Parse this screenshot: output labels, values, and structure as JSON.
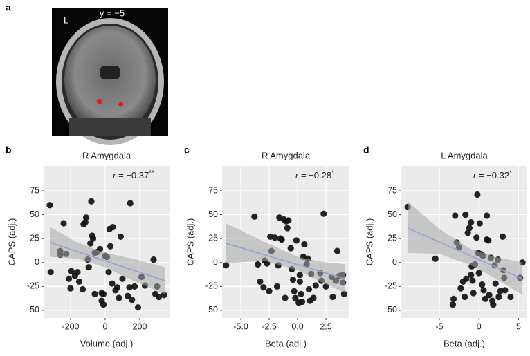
{
  "panel_a": {
    "label": "a",
    "hemisphere": "L",
    "slice": "y = −5"
  },
  "chart_data": [
    {
      "type": "scatter",
      "panel": "b",
      "title": "R Amygdala",
      "xlabel": "Volume (adj.)",
      "ylabel": "CAPS (adj.)",
      "annotation": {
        "symbol": "r",
        "text": " = −0.37",
        "sup": "**"
      },
      "color": "#111111",
      "fit_color": "#8fa3dd",
      "band_color": "#a8a8a8",
      "grid": true,
      "xlim": [
        -356,
        372
      ],
      "ylim": [
        -58,
        101
      ],
      "xticks": [
        -200,
        0,
        200
      ],
      "yticks": [
        -50,
        -25,
        0,
        25,
        50,
        75
      ],
      "x": [
        -320,
        -315,
        -260,
        -260,
        -240,
        -225,
        -210,
        -200,
        -195,
        -175,
        -160,
        -150,
        -130,
        -125,
        -115,
        -110,
        -100,
        -95,
        -85,
        -80,
        -75,
        -70,
        -60,
        -60,
        -45,
        -30,
        -20,
        -10,
        -20,
        -10,
        0,
        10,
        20,
        25,
        30,
        40,
        45,
        60,
        70,
        80,
        90,
        100,
        130,
        140,
        145,
        155,
        170,
        190,
        210,
        230,
        280,
        290,
        300,
        310,
        340
      ],
      "values": [
        60,
        -10,
        12,
        8,
        41,
        9,
        -17,
        -27,
        -9,
        -14,
        -10,
        -20,
        -28,
        40,
        42,
        47,
        3,
        -5,
        20,
        64,
        28,
        25,
        -33,
        10,
        11,
        14,
        -32,
        -33,
        -40,
        -44,
        7,
        6,
        -10,
        35,
        17,
        -22,
        37,
        -29,
        -26,
        -37,
        27,
        -17,
        -35,
        -26,
        62,
        -39,
        -25,
        -47,
        -15,
        -24,
        3,
        -33,
        -25,
        -36,
        -34
      ],
      "fit": {
        "x": [
          -320,
          345
        ],
        "values": [
          21,
          -19
        ]
      },
      "band": {
        "x": [
          -320,
          -160,
          0,
          160,
          345
        ],
        "lower": [
          6,
          4,
          -5,
          -19,
          -33
        ],
        "upper": [
          37,
          21,
          10,
          4,
          -5
        ]
      }
    },
    {
      "type": "scatter",
      "panel": "c",
      "title": "R Amygdala",
      "xlabel": "Beta (adj.)",
      "ylabel": "CAPS (adj.)",
      "annotation": {
        "symbol": "r",
        "text": " = −0.28",
        "sup": "*"
      },
      "color": "#111111",
      "fit_color": "#8fa3dd",
      "band_color": "#a8a8a8",
      "grid": true,
      "xlim": [
        -6.65,
        4.57
      ],
      "ylim": [
        -58,
        101
      ],
      "xticks": [
        {
          "value": -5,
          "label": "-5.0"
        },
        {
          "value": -2.5,
          "label": "-2.5"
        },
        {
          "value": 0,
          "label": "0.0"
        },
        {
          "value": 2.5,
          "label": "2.5"
        }
      ],
      "yticks": [
        -50,
        -25,
        0,
        25,
        50,
        75
      ],
      "x": [
        -6.3,
        -3.8,
        -3.5,
        -3.3,
        -3.0,
        -2.9,
        -2.7,
        -2.5,
        -2.4,
        -2.3,
        -2.0,
        -1.8,
        -1.7,
        -1.6,
        -1.5,
        -1.4,
        -1.2,
        -1.0,
        -1.1,
        -0.9,
        -0.8,
        -0.6,
        -0.5,
        -0.4,
        -0.3,
        -0.2,
        -0.1,
        0.1,
        0.2,
        0.2,
        0.3,
        0.4,
        0.5,
        0.6,
        0.8,
        0.9,
        1.0,
        1.1,
        1.2,
        1.4,
        1.6,
        2.0,
        2.1,
        2.3,
        2.5,
        3.0,
        3.1,
        3.4,
        3.5,
        3.7,
        4.0,
        4.1,
        4.0
      ],
      "values": [
        -3,
        48,
        -2,
        -20,
        -26,
        2,
        -1,
        -30,
        27,
        12,
        26,
        -25,
        -3,
        47,
        25,
        24,
        45,
        43,
        -37,
        36,
        44,
        15,
        -7,
        -18,
        -30,
        -37,
        23,
        -42,
        -13,
        -20,
        -33,
        -41,
        6,
        19,
        -2,
        4,
        -28,
        -40,
        -12,
        -37,
        -24,
        -11,
        -19,
        51,
        -25,
        -15,
        -36,
        -19,
        12,
        -14,
        -13,
        -33,
        -21
      ],
      "fit": {
        "x": [
          -6.3,
          4.2
        ],
        "values": [
          20,
          -17
        ]
      },
      "band": {
        "x": [
          -6.3,
          -3,
          0,
          2,
          4.2
        ],
        "lower": [
          -1,
          2,
          -8,
          -20,
          -32
        ],
        "upper": [
          41,
          22,
          6,
          1,
          -2
        ]
      }
    },
    {
      "type": "scatter",
      "panel": "d",
      "title": "L Amygdala",
      "xlabel": "Beta (adj.)",
      "ylabel": "CAPS (adj.)",
      "annotation": {
        "symbol": "r",
        "text": " = −0.32",
        "sup": "*"
      },
      "color": "#111111",
      "fit_color": "#8fa3dd",
      "band_color": "#a8a8a8",
      "grid": true,
      "xlim": [
        -9.8,
        6.1
      ],
      "ylim": [
        -58,
        101
      ],
      "xticks": [
        -5,
        0,
        5
      ],
      "yticks": [
        -50,
        -25,
        0,
        25,
        50,
        75
      ],
      "x": [
        -9,
        -5.5,
        -3.3,
        -3.2,
        -3,
        -2.8,
        -2.5,
        -2.3,
        -2,
        -1.8,
        -1.7,
        -1.6,
        -1.4,
        -1.2,
        -1.0,
        -1.0,
        -0.9,
        -0.8,
        -0.7,
        -0.5,
        -0.3,
        -0.2,
        -0.1,
        0,
        0.1,
        0.2,
        0.4,
        0.5,
        0.6,
        0.8,
        1.0,
        1.0,
        1.2,
        1.3,
        1.5,
        1.7,
        1.8,
        2.0,
        2.1,
        2.4,
        2.5,
        2.7,
        3.0,
        3.1,
        3.2,
        3.3,
        4,
        5.2,
        5.5
      ],
      "values": [
        58,
        4,
        -44,
        -38,
        49,
        21,
        16,
        -27,
        -20,
        -36,
        50,
        -17,
        31,
        36,
        42,
        -13,
        -4,
        -19,
        -32,
        -2,
        26,
        71,
        10,
        -11,
        41,
        9,
        -23,
        7,
        -29,
        -38,
        24,
        49,
        23,
        -34,
        5,
        -40,
        -44,
        -3,
        -22,
        3,
        -36,
        -30,
        27,
        -8,
        -16,
        -29,
        -36,
        -16,
        0
      ],
      "fit": {
        "x": [
          -9,
          5.5
        ],
        "values": [
          36,
          -17
        ]
      },
      "band": {
        "x": [
          -9,
          -5,
          -1,
          2,
          5.5
        ],
        "lower": [
          10,
          9,
          -3,
          -16,
          -34
        ],
        "upper": [
          64,
          35,
          14,
          6,
          0
        ]
      }
    }
  ]
}
